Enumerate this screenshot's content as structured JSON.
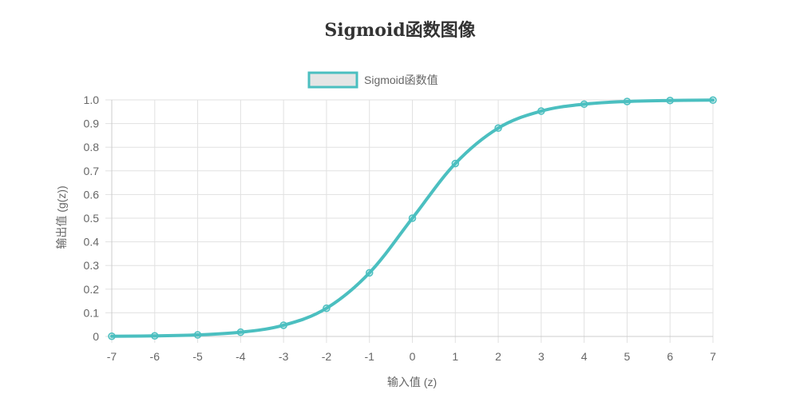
{
  "title": "Sigmoid函数图像",
  "colors": {
    "line": "#4bbfc0",
    "grid": "#e1e1e1",
    "axis": "#cccccc",
    "text": "#666666",
    "legend_fill": "#e5e5e5"
  },
  "chart_data": {
    "type": "line",
    "x": [
      -7,
      -6,
      -5,
      -4,
      -3,
      -2,
      -1,
      0,
      1,
      2,
      3,
      4,
      5,
      6,
      7
    ],
    "series": [
      {
        "name": "Sigmoid函数值",
        "values": [
          0.0009,
          0.0025,
          0.0067,
          0.018,
          0.0474,
          0.1192,
          0.2689,
          0.5,
          0.7311,
          0.8808,
          0.9526,
          0.982,
          0.9933,
          0.9975,
          0.9991
        ]
      }
    ],
    "xlabel": "输入值 (z)",
    "ylabel": "输出值 (g(z))",
    "ylim": [
      0,
      1
    ],
    "yticks": [
      "0",
      "0.1",
      "0.2",
      "0.3",
      "0.4",
      "0.5",
      "0.6",
      "0.7",
      "0.8",
      "0.9",
      "1.0"
    ],
    "xticks": [
      "-7",
      "-6",
      "-5",
      "-4",
      "-3",
      "-2",
      "-1",
      "0",
      "1",
      "2",
      "3",
      "4",
      "5",
      "6",
      "7"
    ],
    "grid": true,
    "legend_position": "top-center"
  }
}
